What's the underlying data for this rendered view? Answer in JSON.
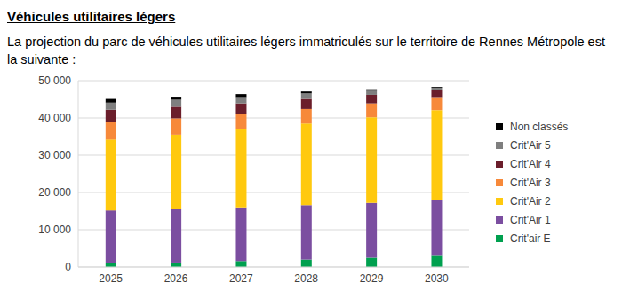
{
  "title": "Véhicules utilitaires légers",
  "subtitle": "La projection du parc de véhicules utilitaires légers immatriculés sur le territoire de Rennes Métropole est la suivante :",
  "chart_data": {
    "type": "bar",
    "stacked": true,
    "grid": true,
    "legend": "right",
    "categories": [
      "2025",
      "2026",
      "2027",
      "2028",
      "2029",
      "2030"
    ],
    "ylim": [
      0,
      50000
    ],
    "yticks": [
      0,
      {
        "value": 10000,
        "label": "10 000"
      },
      {
        "value": 20000,
        "label": "20 000"
      },
      {
        "value": 30000,
        "label": "30 000"
      },
      {
        "value": 40000,
        "label": "40 000"
      },
      {
        "value": 50000,
        "label": "50 000"
      }
    ],
    "series": [
      {
        "name": "Crit'air E",
        "color": "#00a04f",
        "values": [
          1000,
          1200,
          1600,
          2000,
          2500,
          3000
        ]
      },
      {
        "name": "Crit'Air 1",
        "color": "#7b4ea0",
        "values": [
          14200,
          14300,
          14400,
          14600,
          14700,
          15000
        ]
      },
      {
        "name": "Crit'Air 2",
        "color": "#ffc90e",
        "values": [
          19000,
          20000,
          21000,
          21900,
          23000,
          24100
        ]
      },
      {
        "name": "Crit'Air 3",
        "color": "#f7893a",
        "values": [
          4700,
          4400,
          4100,
          3900,
          3700,
          3500
        ]
      },
      {
        "name": "Crit'Air 4",
        "color": "#6b1e2b",
        "values": [
          3300,
          3100,
          2800,
          2700,
          2300,
          1900
        ]
      },
      {
        "name": "Crit'Air 5",
        "color": "#7f7f7f",
        "values": [
          1900,
          1900,
          1700,
          1500,
          1100,
          600
        ]
      },
      {
        "name": "Non classés",
        "color": "#000000",
        "values": [
          1000,
          800,
          800,
          500,
          400,
          200
        ]
      }
    ]
  }
}
